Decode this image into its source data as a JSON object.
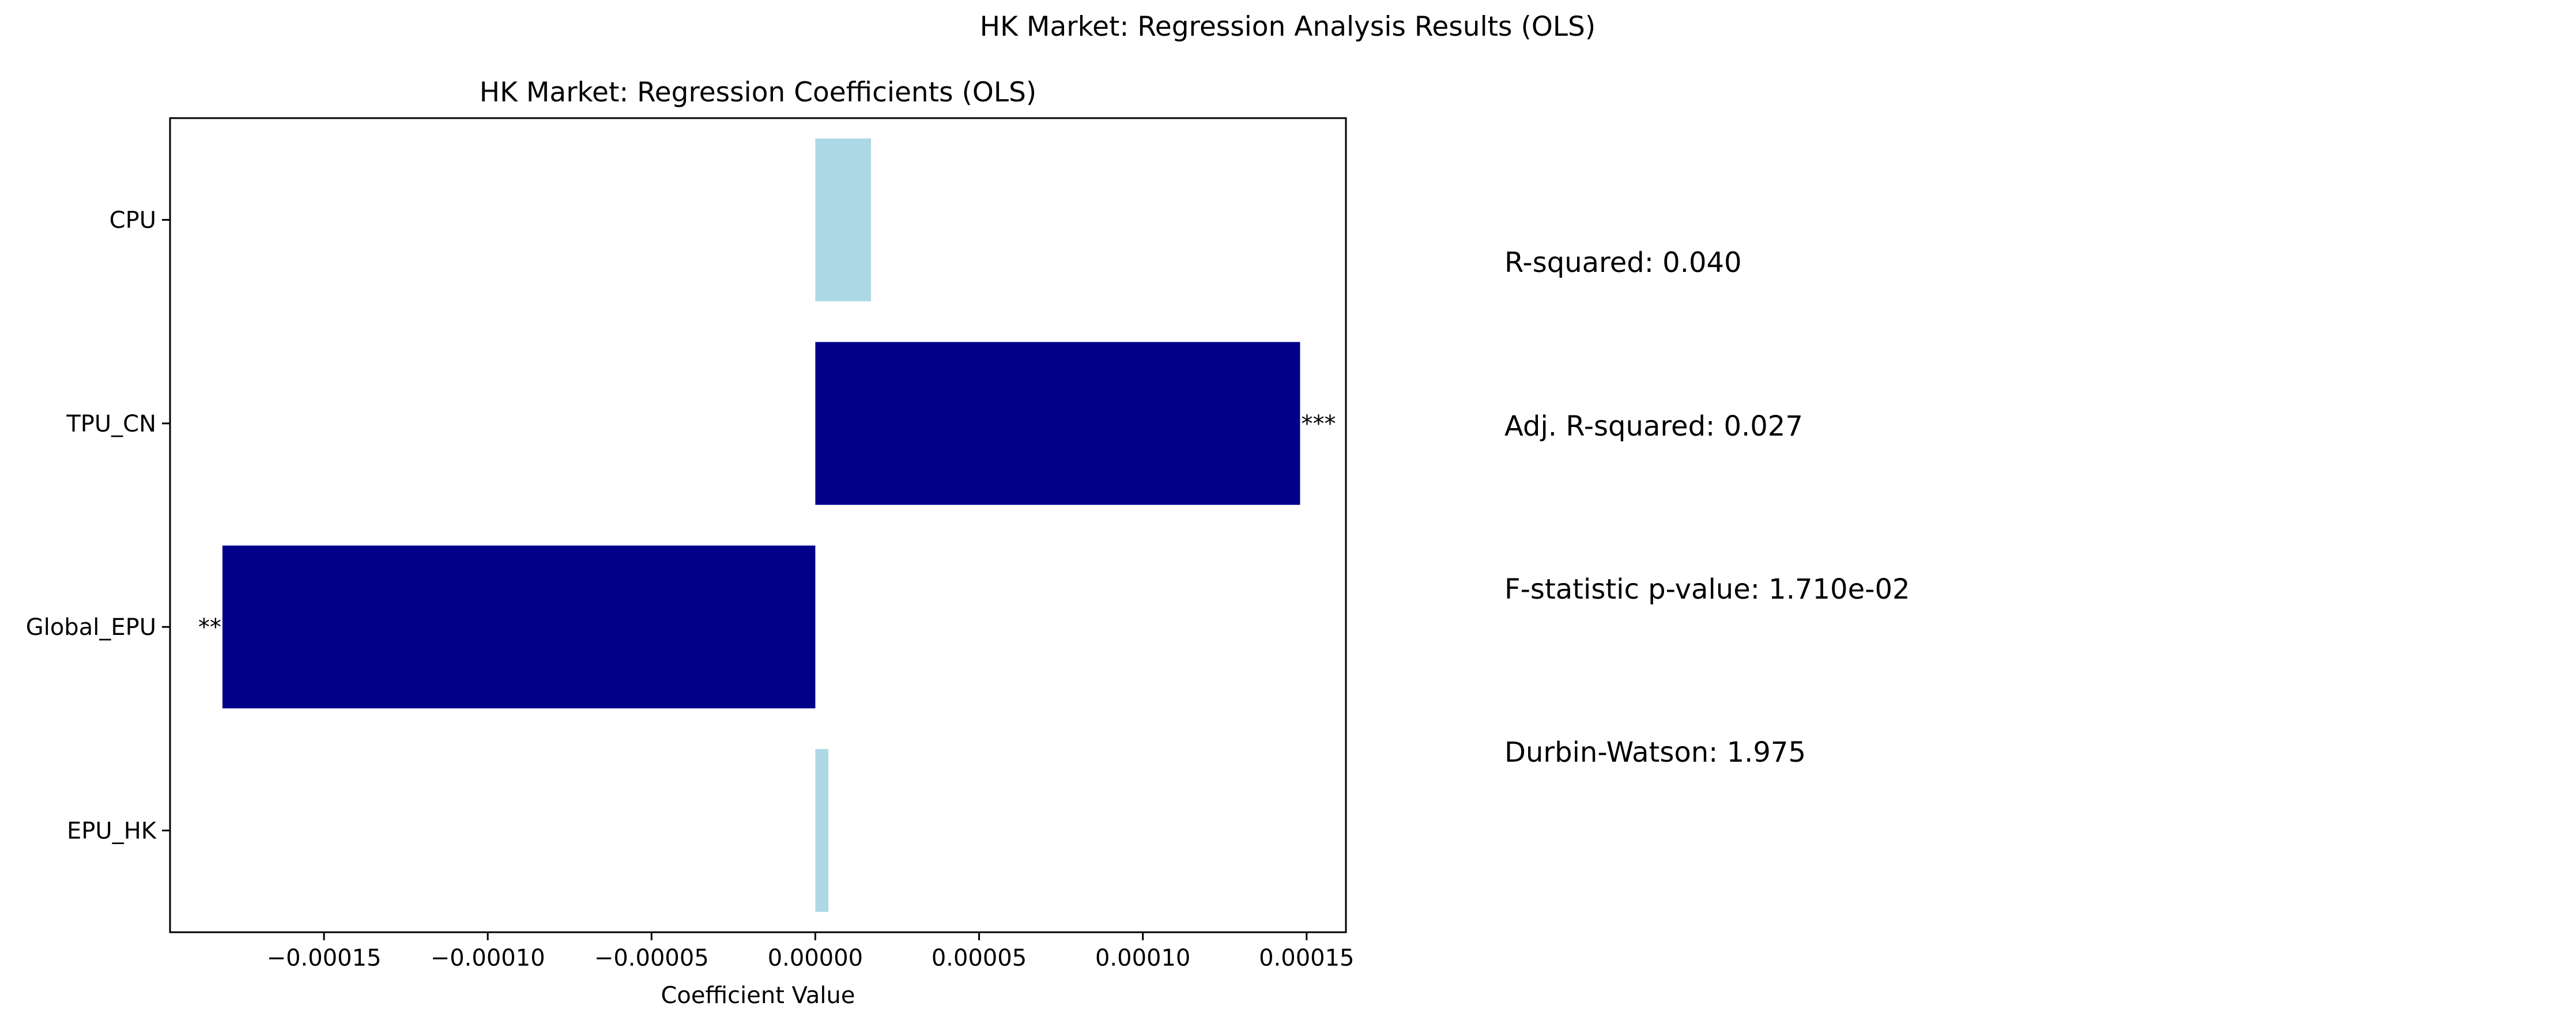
{
  "figure": {
    "suptitle": "HK Market: Regression Analysis Results (OLS)"
  },
  "chart_data": {
    "type": "bar",
    "orientation": "horizontal",
    "title": "HK Market: Regression Coefficients (OLS)",
    "xlabel": "Coefficient Value",
    "ylabel": "",
    "xlim": [
      -0.000197,
      0.000162
    ],
    "xticks": [
      -0.00015,
      -0.0001,
      -5e-05,
      0.0,
      5e-05,
      0.0001,
      0.00015
    ],
    "xtick_labels": [
      "−0.00015",
      "−0.00010",
      "−0.00005",
      "0.00000",
      "0.00005",
      "0.00010",
      "0.00015"
    ],
    "grid": false,
    "categories": [
      "EPU_HK",
      "Global_EPU",
      "TPU_CN",
      "CPU"
    ],
    "values": [
      4e-06,
      -0.000181,
      0.000148,
      1.7e-05
    ],
    "significance": [
      "",
      "**",
      "***",
      ""
    ],
    "colors": [
      "#add8e6",
      "#00008b",
      "#00008b",
      "#add8e6"
    ]
  },
  "stats_panel": {
    "items": [
      "R-squared: 0.040",
      "Adj. R-squared: 0.027",
      "F-statistic p-value: 1.710e-02",
      "Durbin-Watson: 1.975"
    ]
  }
}
